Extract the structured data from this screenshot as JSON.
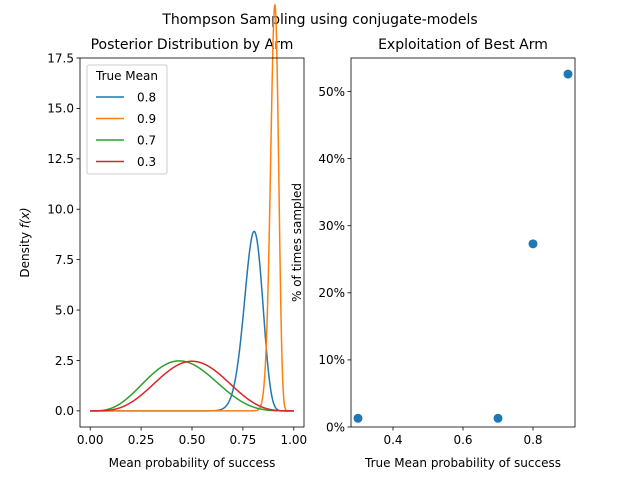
{
  "figure": {
    "suptitle": "Thompson Sampling using conjugate-models"
  },
  "chart_data": [
    {
      "type": "line",
      "title": "Posterior Distribution by Arm",
      "xlabel": "Mean probability of success",
      "ylabel_main": "Density ",
      "ylabel_math": "f(x)",
      "xlim": [
        -0.05,
        1.05
      ],
      "ylim": [
        -0.8,
        17.5
      ],
      "xticks": [
        "0.00",
        "0.25",
        "0.50",
        "0.75",
        "1.00"
      ],
      "yticks": [
        "0.0",
        "2.5",
        "5.0",
        "7.5",
        "10.0",
        "12.5",
        "15.0",
        "17.5"
      ],
      "grid": false,
      "legend": {
        "title": "True Mean",
        "placement": "top-left"
      },
      "series": [
        {
          "name": "0.8",
          "color": "#1f77b4",
          "alpha": 63,
          "beta": 16
        },
        {
          "name": "0.9",
          "color": "#ff7f0e",
          "alpha": 196,
          "beta": 21
        },
        {
          "name": "0.7",
          "color": "#2ca02c",
          "alpha": 4.5,
          "beta": 5.5
        },
        {
          "name": "0.3",
          "color": "#d62728",
          "alpha": 5,
          "beta": 5
        }
      ]
    },
    {
      "type": "scatter",
      "title": "Exploitation of Best Arm",
      "xlabel": "True Mean probability of success",
      "ylabel": "% of times sampled",
      "xlim": [
        0.28,
        0.92
      ],
      "ylim": [
        0,
        55
      ],
      "xticks": [
        "0.4",
        "0.6",
        "0.8"
      ],
      "yticks": [
        "0%",
        "10%",
        "20%",
        "30%",
        "40%",
        "50%"
      ],
      "grid": false,
      "color": "#1f77b4",
      "x": [
        0.3,
        0.7,
        0.8,
        0.9
      ],
      "y": [
        1.3,
        1.3,
        27.3,
        52.6
      ]
    }
  ]
}
